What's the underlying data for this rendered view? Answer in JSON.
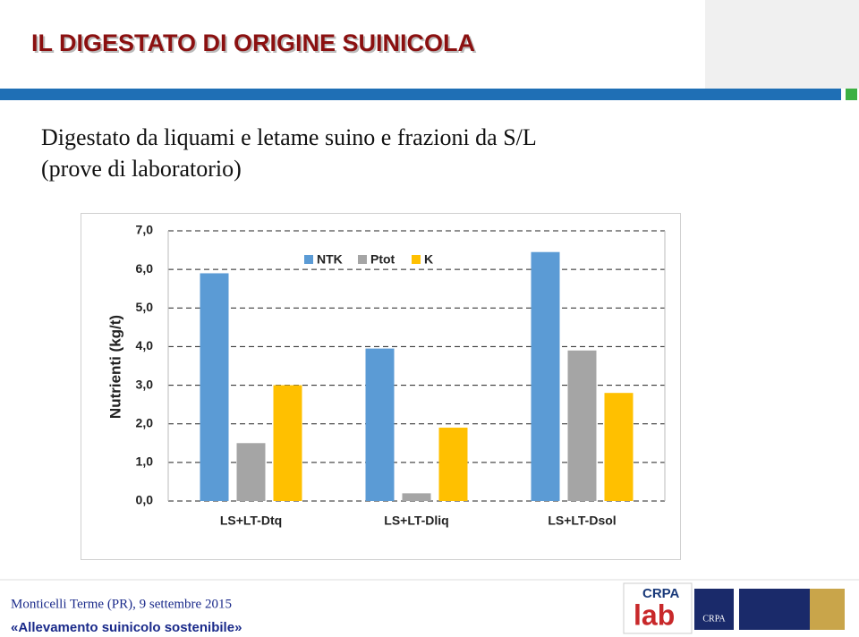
{
  "header": {
    "title": "IL DIGESTATO DI ORIGINE SUINICOLA"
  },
  "subtitle": [
    "Digestato da liquami e letame suino e frazioni da S/L",
    "(prove di laboratorio)"
  ],
  "chart_data": {
    "type": "bar",
    "ylabel": "Nutrienti (kg/t)",
    "categories": [
      "LS+LT-Dtq",
      "LS+LT-Dliq",
      "LS+LT-Dsol"
    ],
    "series": [
      {
        "name": "NTK",
        "color": "#5b9bd5",
        "values": [
          5.9,
          3.95,
          6.45
        ]
      },
      {
        "name": "Ptot",
        "color": "#a5a5a5",
        "values": [
          1.5,
          0.2,
          3.9
        ]
      },
      {
        "name": "K",
        "color": "#ffc000",
        "values": [
          3.0,
          1.9,
          2.8
        ]
      }
    ],
    "ylim": [
      0,
      7
    ],
    "yticks": [
      {
        "value": 0,
        "label": "0,0"
      },
      {
        "value": 1,
        "label": "1,0"
      },
      {
        "value": 2,
        "label": "2,0"
      },
      {
        "value": 3,
        "label": "3,0"
      },
      {
        "value": 4,
        "label": "4,0"
      },
      {
        "value": 5,
        "label": "5,0"
      },
      {
        "value": 6,
        "label": "6,0"
      },
      {
        "value": 7,
        "label": "7,0"
      }
    ],
    "grid": true
  },
  "footer": {
    "place_date": "Monticelli Terme (PR), 9 settembre 2015",
    "motto": "«Allevamento suinicolo sostenibile»"
  },
  "logos": [
    "CRPA",
    "lab",
    "CRPA"
  ]
}
